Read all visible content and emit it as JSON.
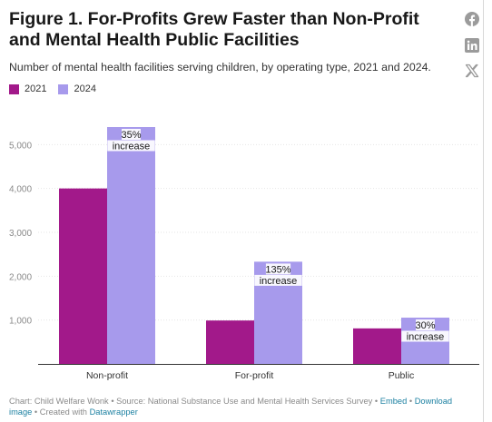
{
  "header": {
    "title": "Figure 1. For-Profits Grew Faster than Non-Profit and Mental Health Public Facilities",
    "subtitle": "Number of mental health facilities serving children, by operating type, 2021 and 2024."
  },
  "social": [
    {
      "name": "facebook-icon"
    },
    {
      "name": "linkedin-icon"
    },
    {
      "name": "x-icon"
    }
  ],
  "legend": [
    {
      "label": "2021",
      "color": "#a2198a"
    },
    {
      "label": "2024",
      "color": "#a79aec"
    }
  ],
  "chart_data": {
    "type": "bar",
    "categories": [
      "Non-profit",
      "For-profit",
      "Public"
    ],
    "series": [
      {
        "name": "2021",
        "color": "#a2198a",
        "values": [
          4000,
          990,
          810
        ]
      },
      {
        "name": "2024",
        "color": "#a79aec",
        "values": [
          5400,
          2330,
          1055
        ]
      }
    ],
    "annotations": [
      {
        "category": "Non-profit",
        "series": "2024",
        "lines": [
          "35%",
          "increase"
        ]
      },
      {
        "category": "For-profit",
        "series": "2024",
        "lines": [
          "135%",
          "increase"
        ]
      },
      {
        "category": "Public",
        "series": "2024",
        "lines": [
          "30%",
          "increase"
        ]
      }
    ],
    "y_ticks": [
      "1,000",
      "2,000",
      "3,000",
      "4,000",
      "5,000"
    ],
    "y_tick_values": [
      1000,
      2000,
      3000,
      4000,
      5000
    ],
    "ylim": [
      0,
      5400
    ],
    "grid": true,
    "legend_position": "top-left"
  },
  "footer": {
    "chart_label": "Chart: Child Welfare Wonk",
    "source_label": "Source: National Substance Use and Mental Health Services Survey",
    "embed_label": "Embed",
    "download_label": "Download image",
    "created_label": "Created with",
    "datawrapper_label": "Datawrapper",
    "separator": "•"
  }
}
